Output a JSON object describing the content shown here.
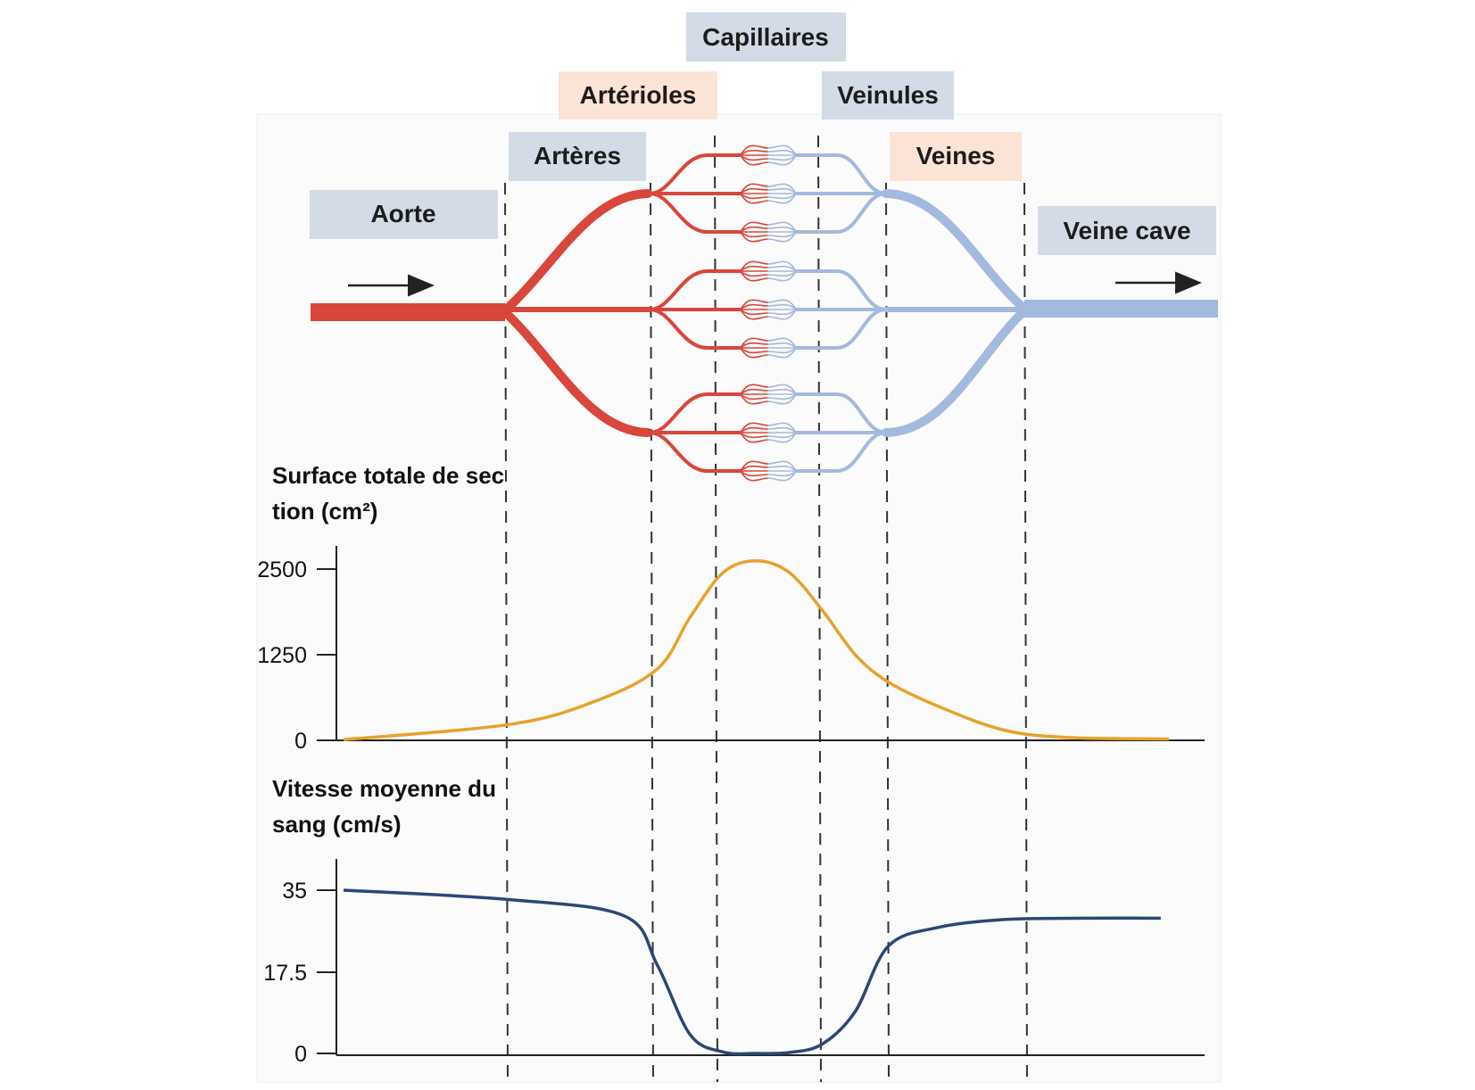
{
  "segments": [
    {
      "id": "aorte",
      "label": "Aorte",
      "type": "artery-side"
    },
    {
      "id": "arteres",
      "label": "Artères",
      "type": "artery-side"
    },
    {
      "id": "arterioles",
      "label": "Artérioles",
      "type": "arteriole-side"
    },
    {
      "id": "capillaires",
      "label": "Capillaires",
      "type": "neutral"
    },
    {
      "id": "veinules",
      "label": "Veinules",
      "type": "neutral"
    },
    {
      "id": "veines",
      "label": "Veines",
      "type": "vein-side"
    },
    {
      "id": "veine_cave",
      "label": "Veine cave",
      "type": "neutral"
    }
  ],
  "colors": {
    "label_blue": "#d2dbe6",
    "label_peach": "#fbe3d6",
    "artery": "#d9463b",
    "vein": "#a4b9de",
    "curve_area": "#e8a12b",
    "curve_velocity": "#2d4774",
    "axis": "#222222",
    "divider": "#333333"
  },
  "icons": {
    "flow_in": "arrow-right-icon",
    "flow_out": "arrow-right-icon"
  },
  "chart_data": [
    {
      "type": "line",
      "title": "Surface totale de section (cm²)",
      "yticks": [
        "2500",
        "1250",
        "0"
      ],
      "ylim": [
        0,
        2500
      ],
      "xlim": [
        0,
        100
      ],
      "series": [
        {
          "x": [
            0,
            20,
            30,
            38,
            42,
            46,
            50,
            54,
            58,
            62,
            66,
            72,
            80,
            88,
            100
          ],
          "values": [
            10,
            230,
            550,
            1040,
            1800,
            2450,
            2620,
            2450,
            1900,
            1250,
            850,
            500,
            150,
            40,
            20
          ]
        }
      ]
    },
    {
      "type": "line",
      "title": "Vitesse moyenne du sang (cm/s)",
      "yticks": [
        "35",
        "17.5",
        "0"
      ],
      "ylim": [
        0,
        35
      ],
      "xlim": [
        0,
        100
      ],
      "series": [
        {
          "x": [
            0,
            20,
            34,
            38,
            42,
            46,
            50,
            54,
            58,
            62,
            66,
            72,
            80,
            90,
            99
          ],
          "values": [
            35,
            33,
            29.5,
            19,
            4,
            0.3,
            0,
            0.2,
            2,
            9,
            23,
            27,
            28.7,
            29,
            29
          ]
        }
      ]
    }
  ]
}
